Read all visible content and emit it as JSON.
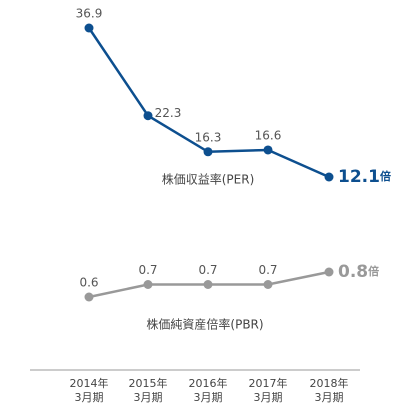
{
  "chart_data": {
    "type": "line",
    "categories": [
      [
        "2014年",
        "3月期"
      ],
      [
        "2015年",
        "3月期"
      ],
      [
        "2016年",
        "3月期"
      ],
      [
        "2017年",
        "3月期"
      ],
      [
        "2018年",
        "3月期"
      ]
    ],
    "series": [
      {
        "name": "株価収益率(PER)",
        "color": "#0d4f8f",
        "unit": "倍",
        "values": [
          36.9,
          22.3,
          16.3,
          16.6,
          12.1
        ]
      },
      {
        "name": "株価純資産倍率(PBR)",
        "color": "#999999",
        "unit": "倍",
        "values": [
          0.6,
          0.7,
          0.7,
          0.7,
          0.8
        ]
      }
    ]
  }
}
